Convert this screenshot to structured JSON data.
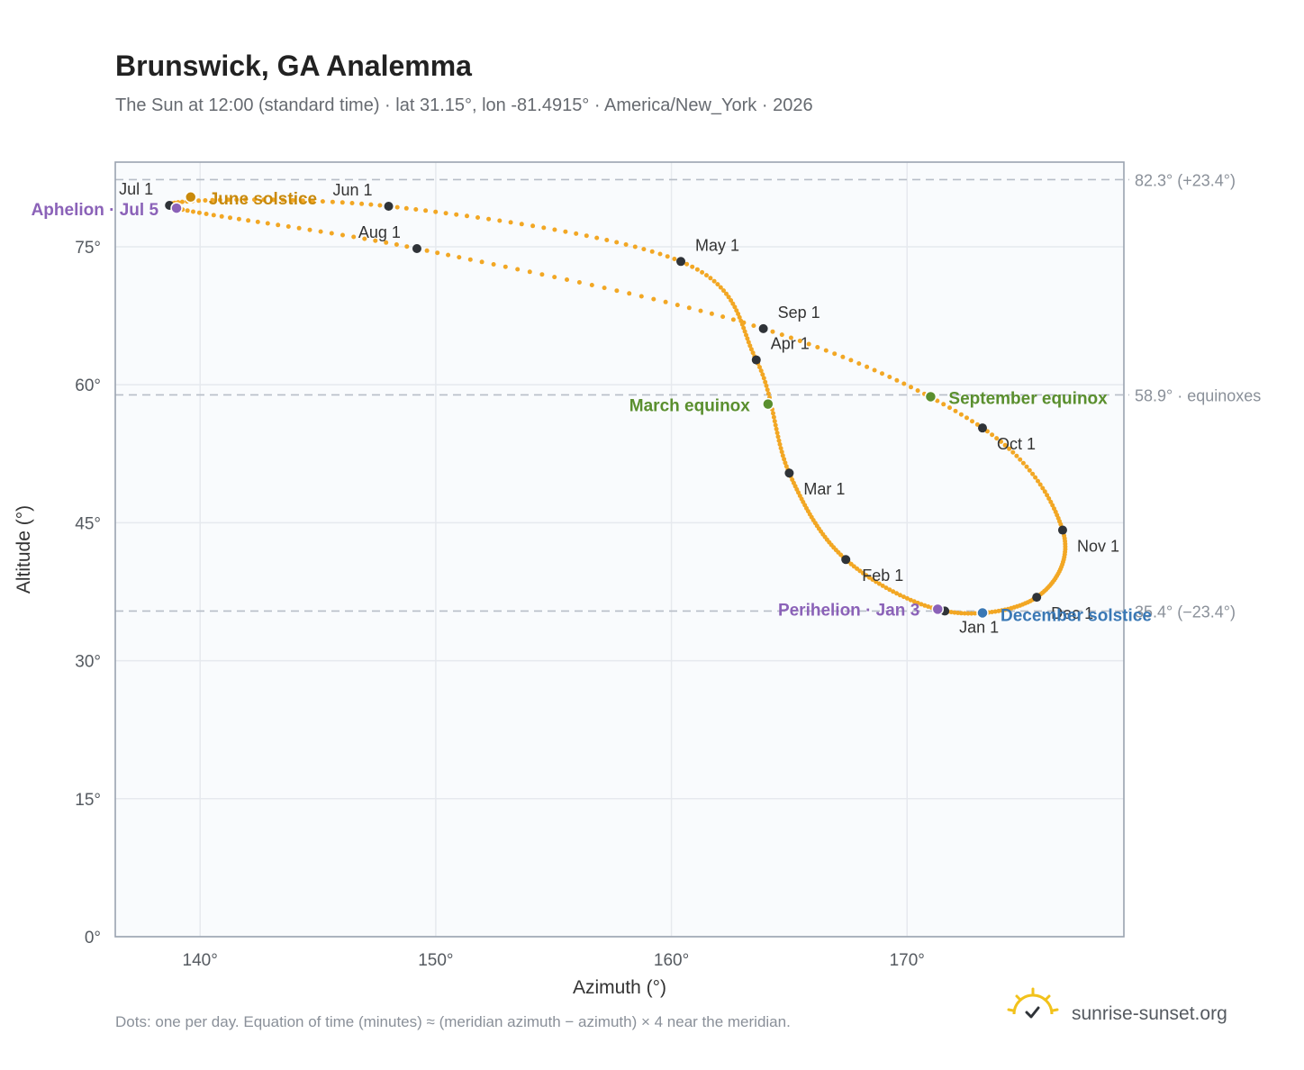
{
  "header": {
    "title": "Brunswick, GA Analemma",
    "subtitle": "The Sun at 12:00 (standard time) · lat 31.15°, lon -81.4915° · America/New_York · 2026"
  },
  "footer": {
    "note": "Dots: one per day. Equation of time (minutes) ≈ (meridian azimuth − azimuth) × 4 near the meridian.",
    "brand": "sunrise-sunset.org"
  },
  "colors": {
    "curve": "#f2a724",
    "month_dot": "#2f3338",
    "solstice_june": "#c98a0c",
    "equinox": "#5a8f2e",
    "solstice_december": "#3a78b5",
    "apsis": "#8b62b8",
    "grid": "#e6e9ee",
    "plot_bg": "#f9fbfd",
    "frame": "#9aa3b0",
    "ref_line": "#b8bec7"
  },
  "chart_data": {
    "type": "scatter",
    "xlabel": "Azimuth (°)",
    "ylabel": "Altitude (°)",
    "xlim": [
      136.4,
      179.2
    ],
    "ylim": [
      0,
      84.2
    ],
    "x_ticks": [
      140,
      150,
      160,
      170
    ],
    "x_tick_labels": [
      "140°",
      "150°",
      "160°",
      "170°"
    ],
    "y_ticks": [
      0,
      15,
      30,
      45,
      60,
      75
    ],
    "y_tick_labels": [
      "0°",
      "15°",
      "30°",
      "45°",
      "60°",
      "75°"
    ],
    "grid": true,
    "reference_lines": [
      {
        "y": 82.3,
        "label": "82.3° (+23.4°)"
      },
      {
        "y": 58.9,
        "label": "58.9° · equinoxes"
      },
      {
        "y": 35.4,
        "label": "35.4° (−23.4°)"
      }
    ],
    "month_markers": [
      {
        "label": "Jan 1",
        "x": 171.6,
        "y": 35.4
      },
      {
        "label": "Feb 1",
        "x": 167.4,
        "y": 41.0
      },
      {
        "label": "Mar 1",
        "x": 165.0,
        "y": 50.4
      },
      {
        "label": "Apr 1",
        "x": 163.6,
        "y": 62.7
      },
      {
        "label": "May 1",
        "x": 160.4,
        "y": 73.4
      },
      {
        "label": "Jun 1",
        "x": 148.0,
        "y": 79.4
      },
      {
        "label": "Jul 1",
        "x": 138.7,
        "y": 79.5
      },
      {
        "label": "Aug 1",
        "x": 149.2,
        "y": 74.8
      },
      {
        "label": "Sep 1",
        "x": 163.9,
        "y": 66.1
      },
      {
        "label": "Oct 1",
        "x": 173.2,
        "y": 55.3
      },
      {
        "label": "Nov 1",
        "x": 176.6,
        "y": 44.2
      },
      {
        "label": "Dec 1",
        "x": 175.5,
        "y": 36.9
      }
    ],
    "events": [
      {
        "label": "June solstice",
        "x": 139.6,
        "y": 80.4,
        "color_key": "solstice_june"
      },
      {
        "label": "Aphelion · Jul 5",
        "x": 139.0,
        "y": 79.2,
        "color_key": "apsis"
      },
      {
        "label": "March equinox",
        "x": 164.1,
        "y": 57.9,
        "color_key": "equinox"
      },
      {
        "label": "September equinox",
        "x": 171.0,
        "y": 58.7,
        "color_key": "equinox"
      },
      {
        "label": "Perihelion · Jan 3",
        "x": 171.3,
        "y": 35.6,
        "color_key": "apsis"
      },
      {
        "label": "December solstice",
        "x": 173.2,
        "y": 35.2,
        "color_key": "solstice_december"
      }
    ]
  }
}
